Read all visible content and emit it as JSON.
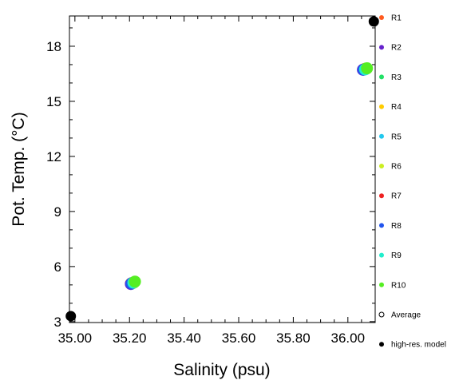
{
  "chart_data": {
    "type": "scatter",
    "title": "",
    "xlabel": "Salinity (psu)",
    "ylabel": "Pot. Temp. (°C)",
    "xlim": [
      34.98,
      36.1
    ],
    "ylim": [
      2.95,
      19.65
    ],
    "xticks": [
      35.0,
      35.2,
      35.4,
      35.6,
      35.8,
      36.0
    ],
    "xtick_labels": [
      "35.00",
      "35.20",
      "35.40",
      "35.60",
      "35.80",
      "36.00"
    ],
    "yticks": [
      3,
      6,
      9,
      12,
      15,
      18
    ],
    "ytick_labels": [
      "3",
      "6",
      "9",
      "12",
      "15",
      "18"
    ],
    "grid": false,
    "legend_position": "right",
    "series": [
      {
        "name": "R1",
        "color": "#ff5a1e",
        "marker": "filled-circle",
        "points": [
          [
            35.205,
            5.07
          ],
          [
            36.06,
            16.75
          ]
        ]
      },
      {
        "name": "R2",
        "color": "#6622cc",
        "marker": "filled-circle",
        "points": [
          [
            35.205,
            5.05
          ],
          [
            36.055,
            16.72
          ]
        ]
      },
      {
        "name": "R3",
        "color": "#22e066",
        "marker": "filled-circle",
        "points": [
          [
            35.215,
            5.13
          ],
          [
            36.065,
            16.78
          ]
        ]
      },
      {
        "name": "R4",
        "color": "#ffcc00",
        "marker": "filled-circle",
        "points": [
          [
            35.212,
            5.1
          ],
          [
            36.062,
            16.76
          ]
        ]
      },
      {
        "name": "R5",
        "color": "#22c8ee",
        "marker": "filled-circle",
        "points": [
          [
            35.21,
            5.1
          ],
          [
            36.06,
            16.74
          ]
        ]
      },
      {
        "name": "R6",
        "color": "#ccee22",
        "marker": "filled-circle",
        "points": [
          [
            35.216,
            5.12
          ],
          [
            36.068,
            16.78
          ]
        ]
      },
      {
        "name": "R7",
        "color": "#ee2222",
        "marker": "filled-circle",
        "points": [
          [
            35.208,
            5.09
          ],
          [
            36.058,
            16.73
          ]
        ]
      },
      {
        "name": "R8",
        "color": "#2255ee",
        "marker": "filled-circle",
        "points": [
          [
            35.207,
            5.08
          ],
          [
            36.057,
            16.72
          ]
        ]
      },
      {
        "name": "R9",
        "color": "#22eecc",
        "marker": "filled-circle",
        "points": [
          [
            35.214,
            5.12
          ],
          [
            36.063,
            16.74
          ]
        ]
      },
      {
        "name": "R10",
        "color": "#55ee22",
        "marker": "filled-circle",
        "points": [
          [
            35.22,
            5.18
          ],
          [
            36.07,
            16.8
          ]
        ]
      },
      {
        "name": "Average",
        "color": "#000000",
        "marker": "open-circle",
        "points": []
      },
      {
        "name": "high-res. model",
        "color": "#000000",
        "marker": "filled-circle",
        "points": [
          [
            34.985,
            3.3
          ],
          [
            36.095,
            19.35
          ]
        ]
      }
    ]
  }
}
